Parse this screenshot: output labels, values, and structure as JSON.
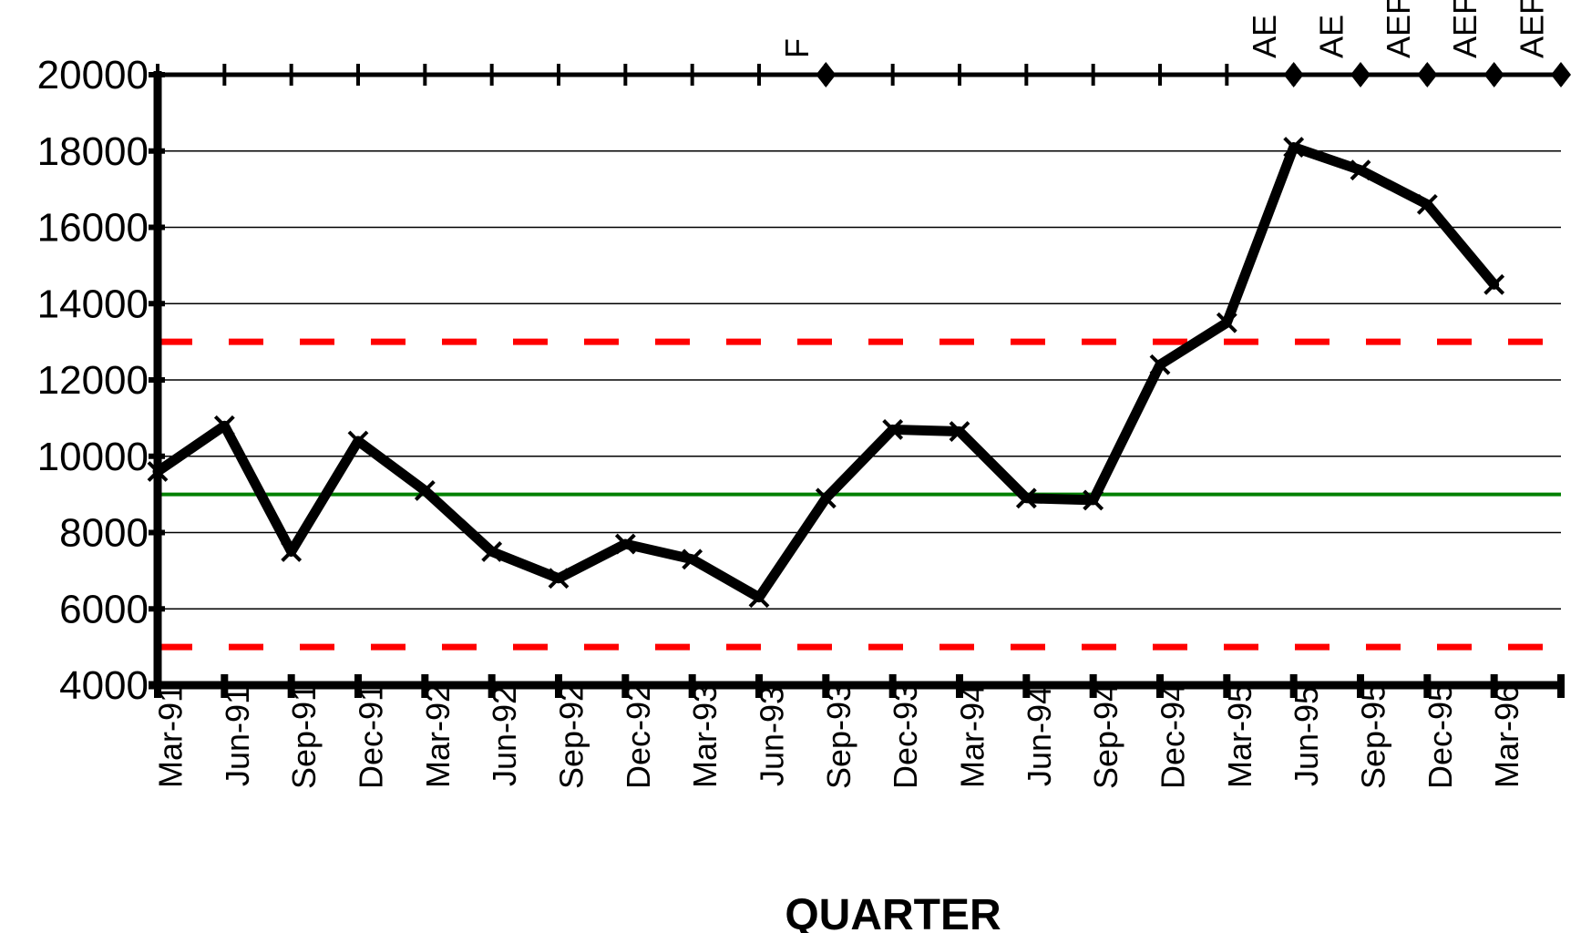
{
  "chart_data": {
    "type": "line",
    "title": "",
    "xlabel": "QUARTER",
    "ylabel": "",
    "ylim": [
      4000,
      20000
    ],
    "yticks": [
      4000,
      6000,
      8000,
      10000,
      12000,
      14000,
      16000,
      18000,
      20000
    ],
    "grid": true,
    "x": [
      "Mar-91",
      "Jun-91",
      "Sep-91",
      "Dec-91",
      "Mar-92",
      "Jun-92",
      "Sep-92",
      "Dec-92",
      "Mar-93",
      "Jun-93",
      "Sep-93",
      "Dec-93",
      "Mar-94",
      "Jun-94",
      "Sep-94",
      "Dec-94",
      "Mar-95",
      "Jun-95",
      "Sep-95",
      "Dec-95",
      "Mar-96"
    ],
    "series": [
      {
        "values": [
          9600,
          10800,
          7500,
          10400,
          9100,
          7500,
          6800,
          7700,
          7300,
          6300,
          8900,
          10700,
          10650,
          8900,
          8850,
          12400,
          13500,
          18100,
          17500,
          16600,
          14500
        ],
        "color": "#000000",
        "marker": "x"
      }
    ],
    "reference_lines": [
      {
        "y": 13000,
        "color": "#ff0000",
        "style": "dashed"
      },
      {
        "y": 9000,
        "color": "#008000",
        "style": "solid"
      },
      {
        "y": 5000,
        "color": "#ff0000",
        "style": "dashed"
      }
    ],
    "top_flags": [
      {
        "after": "Jun-93",
        "label": "F"
      },
      {
        "after": "Mar-95",
        "label": "AE"
      },
      {
        "after": "Jun-95",
        "label": "AE"
      },
      {
        "after": "Sep-95",
        "label": "AEF"
      },
      {
        "after": "Dec-95",
        "label": "AEF"
      },
      {
        "after": "Mar-96",
        "label": "AEF"
      }
    ]
  }
}
